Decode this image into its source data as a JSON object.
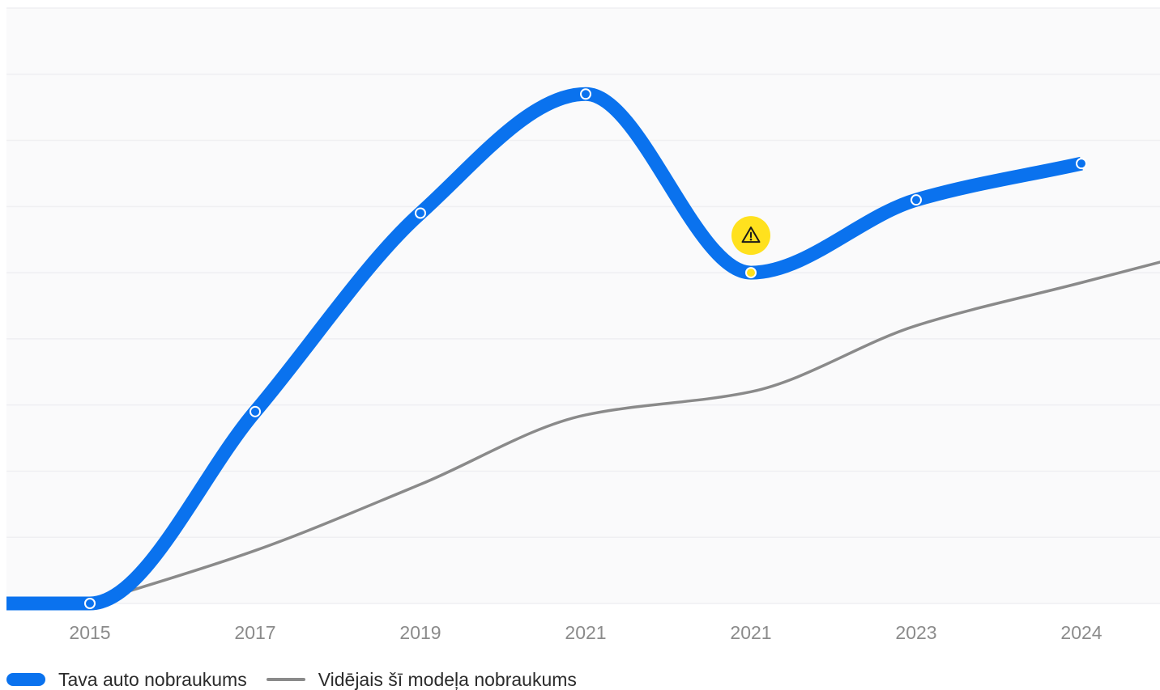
{
  "chart_data": {
    "type": "line",
    "title": "",
    "xlabel": "",
    "ylabel": "",
    "categories": [
      "2015",
      "2017",
      "2019",
      "2021",
      "2021",
      "2023",
      "2024"
    ],
    "series": [
      {
        "name": "Tava auto nobraukums",
        "color": "#0a72ee",
        "values": [
          0,
          29,
          59,
          77,
          50,
          61,
          66.5
        ],
        "flagged_point_index": 4,
        "flag_color": "#ffe11e",
        "flag_icon": "warning-icon"
      },
      {
        "name": "Vidējais šī modeļa nobraukums",
        "color": "#8a8a8a",
        "values": [
          0,
          8,
          18,
          28.5,
          32,
          42,
          48.5
        ]
      }
    ],
    "ylim": [
      0,
      90
    ],
    "grid": true,
    "legend_position": "bottom-left",
    "colors": {
      "background": "#fafafb",
      "grid": "#efeff2",
      "tick_label": "#8b8b8b"
    }
  },
  "legend": {
    "items": [
      {
        "label": "Tava auto nobraukums",
        "color": "#0a72ee"
      },
      {
        "label": "Vidējais šī modeļa nobraukums",
        "color": "#8a8a8a"
      }
    ]
  }
}
